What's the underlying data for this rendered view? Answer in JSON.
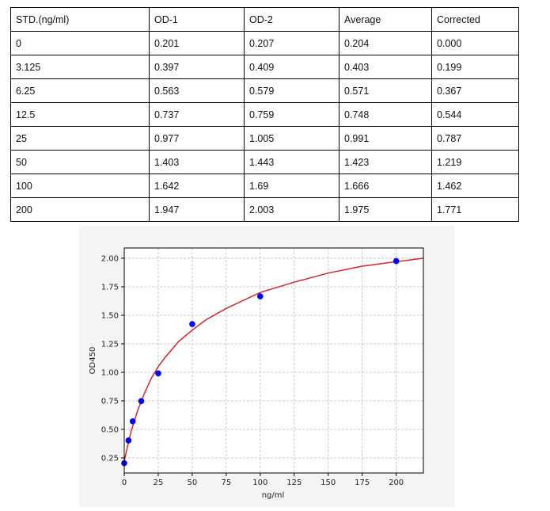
{
  "table": {
    "headers": [
      "STD.(ng/ml)",
      "OD-1",
      "OD-2",
      "Average",
      "Corrected"
    ],
    "rows": [
      [
        "0",
        "0.201",
        "0.207",
        "0.204",
        "0.000"
      ],
      [
        "3.125",
        "0.397",
        "0.409",
        "0.403",
        "0.199"
      ],
      [
        "6.25",
        "0.563",
        "0.579",
        "0.571",
        "0.367"
      ],
      [
        "12.5",
        "0.737",
        "0.759",
        "0.748",
        "0.544"
      ],
      [
        "25",
        "0.977",
        "1.005",
        "0.991",
        "0.787"
      ],
      [
        "50",
        "1.403",
        "1.443",
        "1.423",
        "1.219"
      ],
      [
        "100",
        "1.642",
        "1.69",
        "1.666",
        "1.462"
      ],
      [
        "200",
        "1.947",
        "2.003",
        "1.975",
        "1.771"
      ]
    ]
  },
  "chart_data": {
    "type": "scatter",
    "xlabel": "ng/ml",
    "ylabel": "OD450",
    "xlim": [
      0,
      220
    ],
    "ylim": [
      0.118,
      2.09
    ],
    "xticks": [
      "0",
      "25",
      "50",
      "75",
      "100",
      "125",
      "150",
      "175",
      "200"
    ],
    "yticks": [
      "0.25",
      "0.50",
      "0.75",
      "1.00",
      "1.25",
      "1.50",
      "1.75",
      "2.00"
    ],
    "grid": true,
    "points": {
      "x": [
        0,
        3.125,
        6.25,
        12.5,
        25,
        50,
        100,
        200
      ],
      "y": [
        0.204,
        0.403,
        0.571,
        0.748,
        0.991,
        1.423,
        1.666,
        1.975
      ],
      "color": "#0000ff"
    },
    "fit_curve": {
      "x": [
        0,
        2,
        5,
        10,
        15,
        20,
        25,
        30,
        40,
        50,
        60,
        75,
        100,
        125,
        150,
        175,
        200,
        220
      ],
      "y": [
        0.22,
        0.33,
        0.48,
        0.67,
        0.82,
        0.95,
        1.05,
        1.13,
        1.27,
        1.37,
        1.46,
        1.56,
        1.7,
        1.79,
        1.87,
        1.93,
        1.97,
        2.0
      ],
      "color": "#d62728"
    }
  }
}
